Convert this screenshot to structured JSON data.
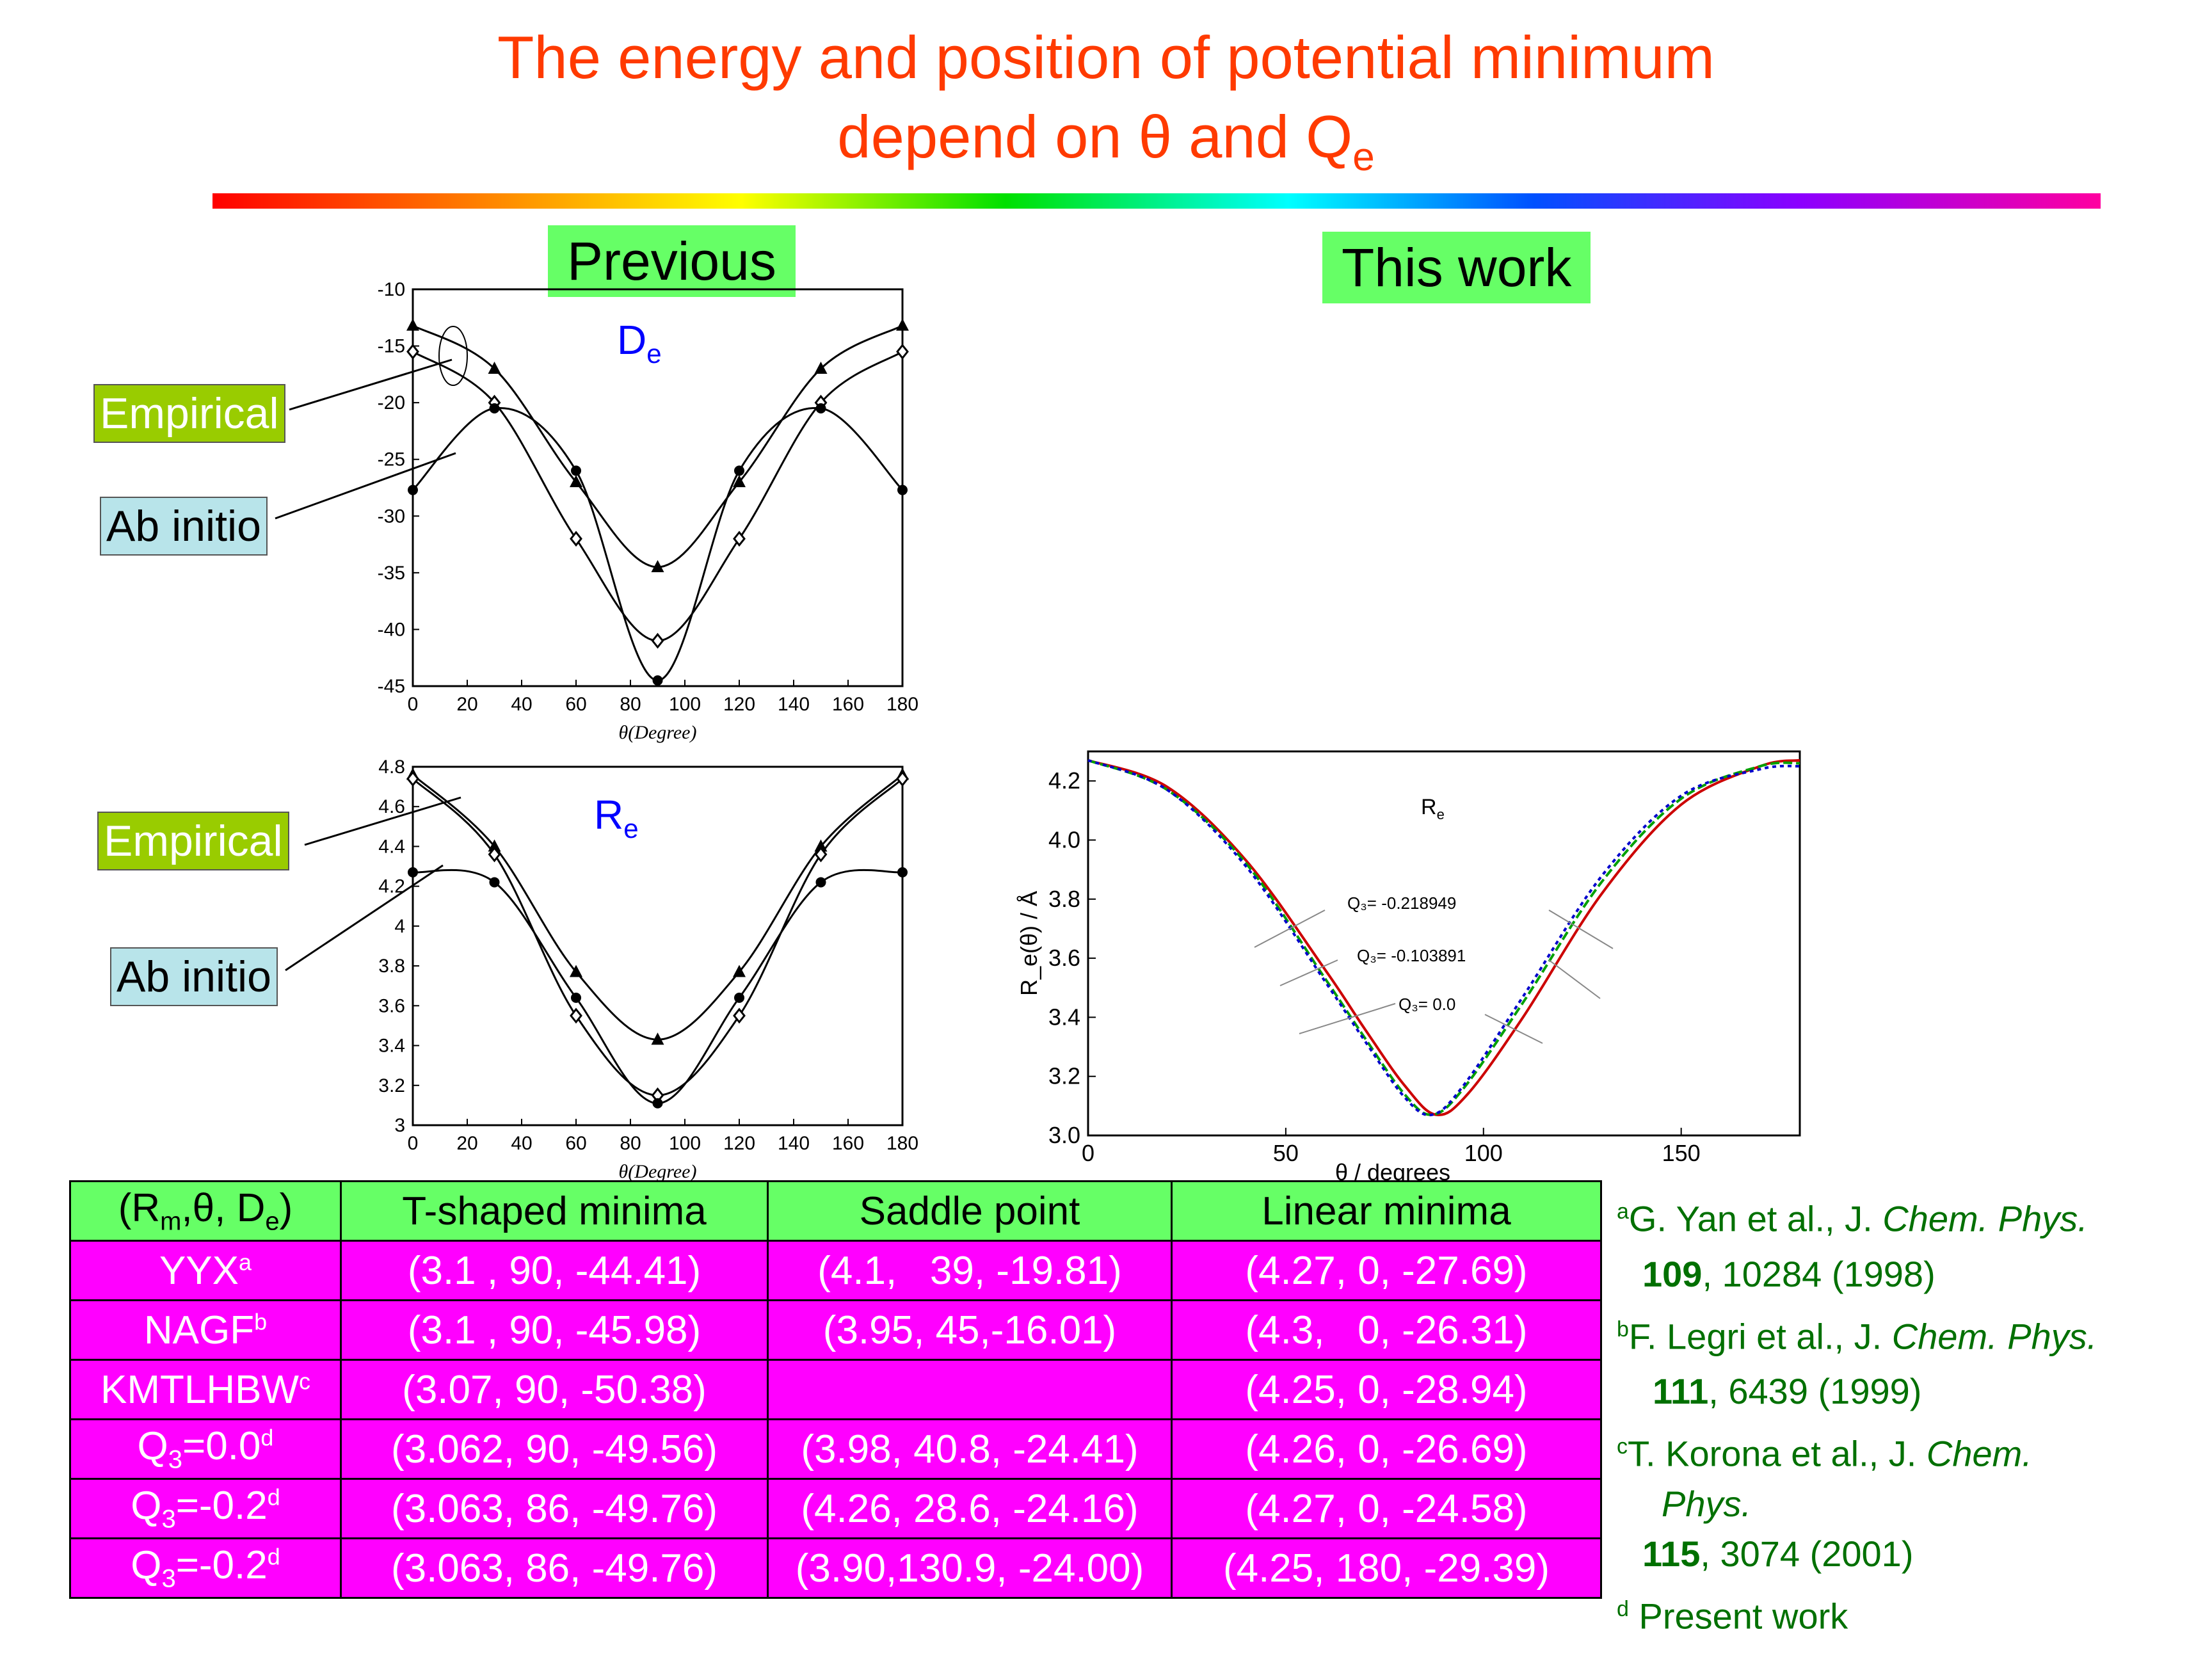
{
  "title": {
    "line1": "The energy and position of potential minimum",
    "line2_pre": "depend on θ and Q",
    "line2_sub": "e"
  },
  "headers": {
    "previous": "Previous",
    "this_work": "This work"
  },
  "labels": {
    "empirical": "Empirical",
    "ab_initio": "Ab initio"
  },
  "de_plot": {
    "label_main": "D",
    "label_sub": "e",
    "xlabel": "θ(Degree)",
    "xticks": [
      "0",
      "20",
      "40",
      "60",
      "80",
      "100",
      "120",
      "140",
      "160",
      "180"
    ],
    "yticks": [
      "-10",
      "-15",
      "-20",
      "-25",
      "-30",
      "-35",
      "-40",
      "-45"
    ]
  },
  "re_plot": {
    "label_main": "R",
    "label_sub": "e",
    "xlabel": "θ(Degree)",
    "xticks": [
      "0",
      "20",
      "40",
      "60",
      "80",
      "100",
      "120",
      "140",
      "160",
      "180"
    ],
    "yticks": [
      "4.8",
      "4.6",
      "4.4",
      "4.2",
      "4",
      "3.8",
      "3.6",
      "3.4",
      "3.2",
      "3"
    ]
  },
  "this_work_plot": {
    "label_main": "R",
    "label_sub": "e",
    "xlabel": "θ / degrees",
    "ylabel": "R_e(θ) / Å",
    "xticks": [
      "0",
      "50",
      "100",
      "150"
    ],
    "yticks": [
      "3.0",
      "3.2",
      "3.4",
      "3.6",
      "3.8",
      "4.0",
      "4.2"
    ],
    "annotations": [
      "Q₃= -0.218949",
      "Q₃= -0.103891",
      "Q₃= 0.0"
    ]
  },
  "chart_data": [
    {
      "type": "line",
      "title": "De",
      "xlabel": "θ(Degree)",
      "xlim": [
        0,
        180
      ],
      "ylim": [
        -45,
        -10
      ],
      "series": [
        {
          "marker": "triangle",
          "x": [
            0,
            30,
            60,
            90,
            120,
            150,
            180
          ],
          "y": [
            -13.2,
            -17.0,
            -27.0,
            -34.5,
            -27.0,
            -17.0,
            -13.2
          ]
        },
        {
          "marker": "diamond",
          "x": [
            0,
            30,
            60,
            90,
            120,
            150,
            180
          ],
          "y": [
            -15.5,
            -20.0,
            -32.0,
            -41.0,
            -32.0,
            -20.0,
            -15.5
          ]
        },
        {
          "marker": "circle",
          "x": [
            0,
            30,
            60,
            90,
            120,
            150,
            180
          ],
          "y": [
            -27.7,
            -20.5,
            -26.0,
            -44.5,
            -26.0,
            -20.5,
            -27.7
          ]
        }
      ]
    },
    {
      "type": "line",
      "title": "Re",
      "xlabel": "θ(Degree)",
      "xlim": [
        0,
        180
      ],
      "ylim": [
        3.0,
        4.8
      ],
      "series": [
        {
          "marker": "triangle",
          "x": [
            0,
            30,
            60,
            90,
            120,
            150,
            180
          ],
          "y": [
            4.76,
            4.4,
            3.77,
            3.43,
            3.77,
            4.4,
            4.76
          ]
        },
        {
          "marker": "diamond",
          "x": [
            0,
            30,
            60,
            90,
            120,
            150,
            180
          ],
          "y": [
            4.74,
            4.36,
            3.55,
            3.15,
            3.55,
            4.36,
            4.74
          ]
        },
        {
          "marker": "circle",
          "x": [
            0,
            30,
            60,
            90,
            120,
            150,
            180
          ],
          "y": [
            4.27,
            4.22,
            3.64,
            3.11,
            3.64,
            4.22,
            4.27
          ]
        }
      ]
    },
    {
      "type": "line",
      "title": "Re",
      "xlabel": "θ / degrees",
      "ylabel": "Re(θ) / Å",
      "xlim": [
        0,
        180
      ],
      "ylim": [
        3.0,
        4.3
      ],
      "series": [
        {
          "name": "Q3= -0.218949",
          "color": "#cc0000",
          "x": [
            0,
            20,
            40,
            60,
            70,
            80,
            88,
            96,
            110,
            130,
            150,
            170,
            180
          ],
          "y": [
            4.27,
            4.18,
            3.93,
            3.56,
            3.36,
            3.17,
            3.07,
            3.14,
            3.4,
            3.82,
            4.12,
            4.25,
            4.27
          ]
        },
        {
          "name": "Q3= -0.103891",
          "color": "#00a000",
          "x": [
            0,
            20,
            40,
            60,
            70,
            80,
            87,
            95,
            110,
            130,
            150,
            170,
            180
          ],
          "y": [
            4.27,
            4.17,
            3.92,
            3.53,
            3.33,
            3.14,
            3.07,
            3.16,
            3.45,
            3.86,
            4.14,
            4.25,
            4.26
          ]
        },
        {
          "name": "Q3= 0.0",
          "color": "#0000cc",
          "x": [
            0,
            20,
            40,
            60,
            70,
            80,
            87,
            95,
            110,
            130,
            150,
            170,
            180
          ],
          "y": [
            4.27,
            4.17,
            3.91,
            3.52,
            3.32,
            3.13,
            3.07,
            3.17,
            3.47,
            3.88,
            4.15,
            4.24,
            4.25
          ]
        }
      ]
    }
  ],
  "table": {
    "header": [
      "(Rm,θ, De)",
      "T-shaped minima",
      "Saddle point",
      "Linear minima"
    ],
    "rows": [
      {
        "label": "YYX",
        "sup": "a",
        "t": "(3.1 , 90, -44.41)",
        "s": "(4.1,   39, -19.81)",
        "l": "(4.27, 0, -27.69)"
      },
      {
        "label": "NAGF",
        "sup": "b",
        "t": "(3.1 , 90, -45.98)",
        "s": "(3.95, 45,-16.01)",
        "l": "(4.3,   0, -26.31)"
      },
      {
        "label": "KMTLHBW",
        "sup": "c",
        "t": "(3.07, 90, -50.38)",
        "s": "",
        "l": "(4.25, 0, -28.94)"
      },
      {
        "label": "Q3=0.0",
        "sup": "d",
        "t": "(3.062, 90, -49.56)",
        "s": "(3.98, 40.8, -24.41)",
        "l": "(4.26, 0, -26.69)"
      },
      {
        "label": "Q3=-0.2",
        "sup": "d",
        "t": "(3.063, 86, -49.76)",
        "s": "(4.26, 28.6, -24.16)",
        "l": "(4.27, 0, -24.58)"
      },
      {
        "label": "Q3=-0.2",
        "sup": "d",
        "t": "(3.063, 86, -49.76)",
        "s": "(3.90,130.9, -24.00)",
        "l": "(4.25, 180, -29.39)"
      }
    ]
  },
  "references": [
    {
      "sup": "a",
      "authors": "G. Yan et al., J. ",
      "journal": "Chem. Phys.",
      "vol": "109",
      "rest": ", 10284 (1998)"
    },
    {
      "sup": "b",
      "authors": "F. Legri et al., J. ",
      "journal": "Chem. Phys.",
      "vol": "111",
      "rest": ", 6439 (1999)"
    },
    {
      "sup": "c",
      "authors": "T. Korona et al., J. ",
      "journal": "Chem.",
      "journal2": "Phys.",
      "vol": "115",
      "rest": ", 3074 (2001)"
    },
    {
      "sup": "d",
      "text": " Present work"
    }
  ]
}
